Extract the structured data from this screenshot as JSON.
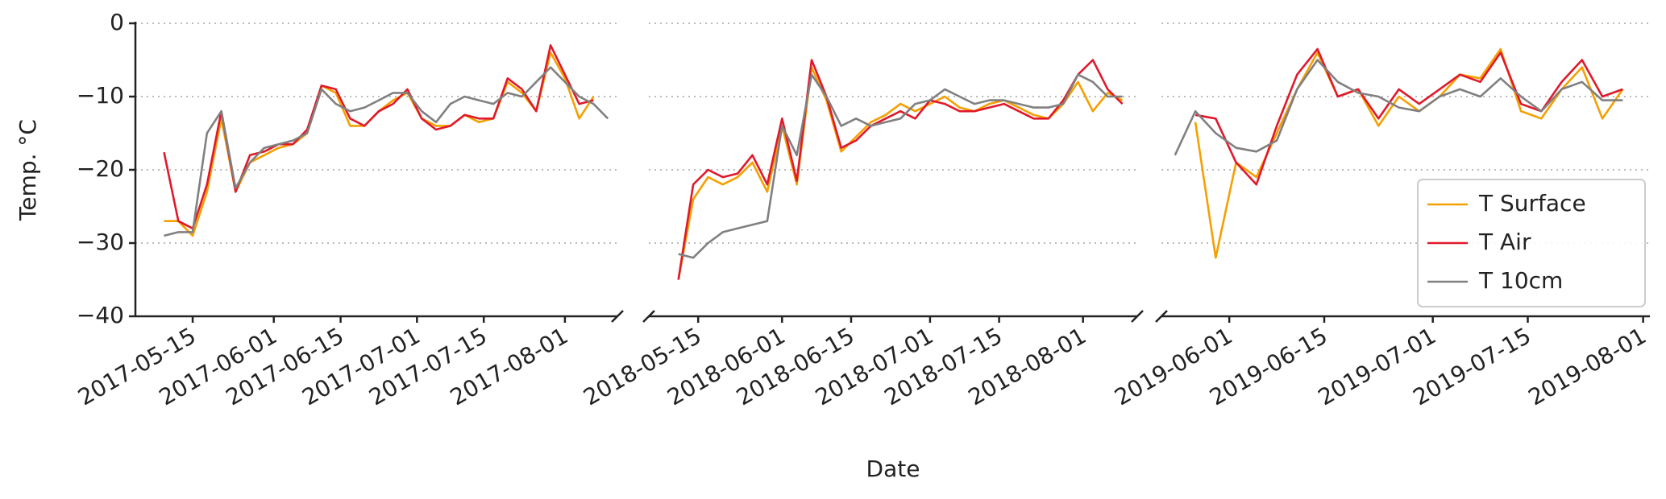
{
  "chart_data": [
    {
      "type": "line",
      "ylabel": "Temp. °C",
      "grid": true,
      "ylim": [
        -40,
        0
      ],
      "yticks": [
        {
          "value": -40,
          "label": "−40"
        },
        {
          "value": -30,
          "label": "−30"
        },
        {
          "value": -20,
          "label": "−20"
        },
        {
          "value": -10,
          "label": "−10"
        },
        0
      ],
      "xlim": [
        "2017-05-03",
        "2017-08-12"
      ],
      "xticks": [
        "2017-05-15",
        "2017-06-01",
        "2017-06-15",
        "2017-07-01",
        "2017-07-15",
        "2017-08-01"
      ],
      "x": [
        "2017-05-09",
        "2017-05-12",
        "2017-05-15",
        "2017-05-18",
        "2017-05-21",
        "2017-05-24",
        "2017-05-27",
        "2017-05-30",
        "2017-06-02",
        "2017-06-05",
        "2017-06-08",
        "2017-06-11",
        "2017-06-14",
        "2017-06-17",
        "2017-06-20",
        "2017-06-23",
        "2017-06-26",
        "2017-06-29",
        "2017-07-02",
        "2017-07-05",
        "2017-07-08",
        "2017-07-11",
        "2017-07-14",
        "2017-07-17",
        "2017-07-20",
        "2017-07-23",
        "2017-07-26",
        "2017-07-29",
        "2017-08-01",
        "2017-08-04",
        "2017-08-07",
        "2017-08-10"
      ],
      "series": [
        {
          "color": "#f5a000",
          "values": [
            -27,
            -27,
            -29,
            -23,
            -13,
            -23,
            -19,
            -18,
            -17,
            -16.5,
            -15,
            -8.5,
            -9.5,
            -14,
            -14,
            -12,
            -10.5,
            -9.5,
            -13,
            -14,
            -14,
            -12.5,
            -13.5,
            -13,
            -8,
            -9.5,
            -12,
            -4,
            -7.5,
            -13,
            -10,
            null
          ]
        },
        {
          "color": "#e0192c",
          "values": [
            -17.6,
            -27,
            -28,
            -22,
            -12,
            -23,
            -18,
            -17.5,
            -16.5,
            -16.5,
            -14.5,
            -8.5,
            -9,
            -13,
            -14,
            -12,
            -11,
            -9,
            -13,
            -14.5,
            -14,
            -12.5,
            -13,
            -13,
            -7.5,
            -9,
            -12,
            -3,
            -7,
            -11,
            -10.5,
            null
          ]
        },
        {
          "color": "#808080",
          "values": [
            -29,
            -28.5,
            -28.5,
            -15,
            -12,
            -22.5,
            -19,
            -17,
            -16.5,
            -16,
            -15,
            -9,
            -11,
            -12,
            -11.5,
            -10.5,
            -9.5,
            -9.5,
            -12,
            -13.5,
            -11,
            -10,
            -10.5,
            -11,
            -9.5,
            -10,
            -8,
            -6,
            -8,
            -10,
            -11,
            -13
          ]
        }
      ]
    },
    {
      "type": "line",
      "xlabel": "Date",
      "grid": true,
      "ylim": [
        -40,
        0
      ],
      "xlim": [
        "2018-05-05",
        "2018-08-12"
      ],
      "xticks": [
        "2018-05-15",
        "2018-06-01",
        "2018-06-15",
        "2018-07-01",
        "2018-07-15",
        "2018-08-01"
      ],
      "x": [
        "2018-05-11",
        "2018-05-14",
        "2018-05-17",
        "2018-05-20",
        "2018-05-23",
        "2018-05-26",
        "2018-05-29",
        "2018-06-01",
        "2018-06-04",
        "2018-06-07",
        "2018-06-10",
        "2018-06-13",
        "2018-06-16",
        "2018-06-19",
        "2018-06-22",
        "2018-06-25",
        "2018-06-28",
        "2018-07-01",
        "2018-07-04",
        "2018-07-07",
        "2018-07-10",
        "2018-07-13",
        "2018-07-16",
        "2018-07-19",
        "2018-07-22",
        "2018-07-25",
        "2018-07-28",
        "2018-07-31",
        "2018-08-03",
        "2018-08-06",
        "2018-08-09"
      ],
      "series": [
        {
          "color": "#f5a000",
          "values": [
            -35,
            -24,
            -21,
            -22,
            -21,
            -19,
            -23,
            -14,
            -22,
            -6,
            -10.5,
            -17.5,
            -15.5,
            -13.5,
            -12.5,
            -11,
            -12,
            -11,
            -10,
            -11.5,
            -12,
            -11,
            -10.5,
            -11.5,
            -12.5,
            -13,
            -11,
            -8,
            -12,
            -9.5,
            -10.5
          ]
        },
        {
          "color": "#e0192c",
          "values": [
            -35,
            -22,
            -20,
            -21,
            -20.5,
            -18,
            -22,
            -13,
            -21.5,
            -5,
            -10,
            -17,
            -16,
            -14,
            -13,
            -12,
            -13,
            -10.5,
            -11,
            -12,
            -12,
            -11.5,
            -11,
            -12,
            -13,
            -13,
            -10.5,
            -7,
            -5,
            -9,
            -11
          ]
        },
        {
          "color": "#808080",
          "values": [
            -31.5,
            -32,
            -30,
            -28.5,
            -28,
            -27.5,
            -27,
            -14,
            -18,
            -7,
            -10,
            -14,
            -13,
            -14,
            -13.5,
            -13,
            -11,
            -10.5,
            -9,
            -10,
            -11,
            -10.5,
            -10.5,
            -11,
            -11.5,
            -11.5,
            -11,
            -7,
            -8,
            -10,
            -10
          ]
        }
      ]
    },
    {
      "type": "line",
      "grid": true,
      "legend": "lower right",
      "ylim": [
        -40,
        0
      ],
      "xlim": [
        "2019-05-22",
        "2019-08-02"
      ],
      "xticks": [
        "2019-06-01",
        "2019-06-15",
        "2019-07-01",
        "2019-07-15",
        "2019-08-01"
      ],
      "x": [
        "2019-05-24",
        "2019-05-27",
        "2019-05-30",
        "2019-06-02",
        "2019-06-05",
        "2019-06-08",
        "2019-06-11",
        "2019-06-14",
        "2019-06-17",
        "2019-06-20",
        "2019-06-23",
        "2019-06-26",
        "2019-06-29",
        "2019-07-02",
        "2019-07-05",
        "2019-07-08",
        "2019-07-11",
        "2019-07-14",
        "2019-07-17",
        "2019-07-20",
        "2019-07-23",
        "2019-07-26",
        "2019-07-29"
      ],
      "series": [
        {
          "name": "T Surface",
          "color": "#f5a000",
          "values": [
            null,
            -13.5,
            -32,
            -19,
            -21,
            -15,
            -9,
            -4,
            -10,
            -9,
            -14,
            -10,
            -12,
            -10,
            -7,
            -7.5,
            -3.5,
            -12,
            -13,
            -9,
            -6,
            -13,
            -9
          ]
        },
        {
          "name": "T Air",
          "color": "#e0192c",
          "values": [
            null,
            -12.5,
            -13,
            -19,
            -22,
            -14,
            -7,
            -3.5,
            -10,
            -9,
            -13,
            -9,
            -11,
            -9,
            -7,
            -8,
            -4,
            -11,
            -12,
            -8,
            -5,
            -10,
            -9
          ]
        },
        {
          "name": "T 10cm",
          "color": "#808080",
          "values": [
            -18,
            -12,
            -15,
            -17,
            -17.5,
            -16,
            -9,
            -5,
            -8,
            -9.5,
            -10,
            -11.5,
            -12,
            -10,
            -9,
            -10,
            -7.5,
            -10,
            -12,
            -9,
            -8,
            -10.5,
            -10.5
          ]
        }
      ]
    }
  ]
}
